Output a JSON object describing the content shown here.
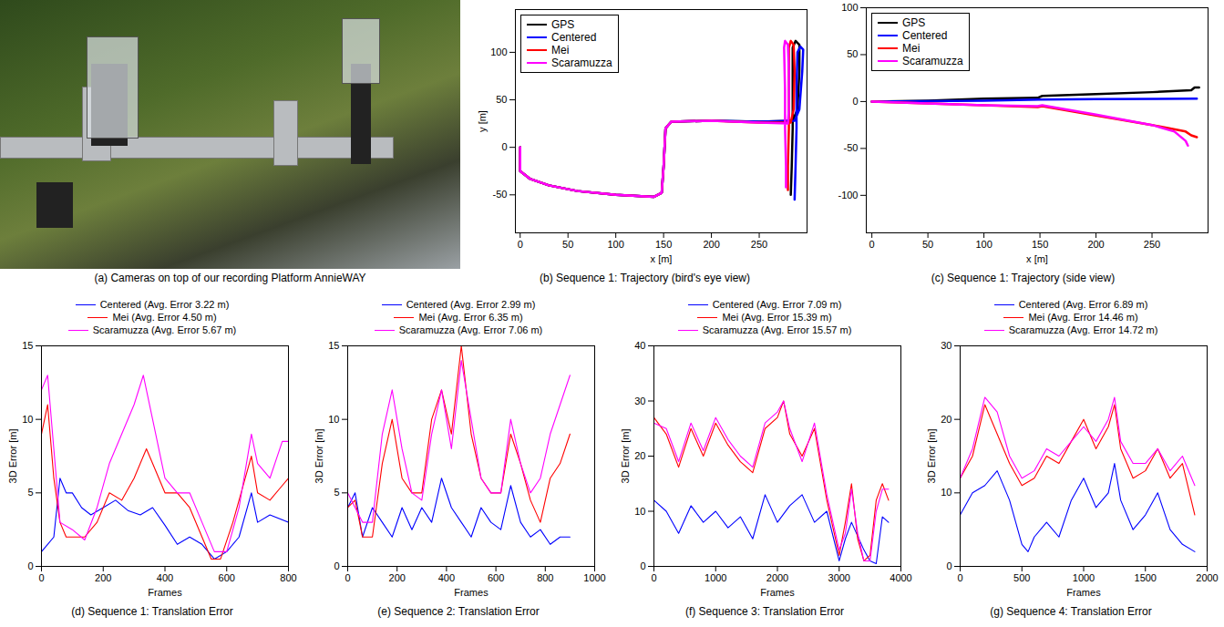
{
  "chart_data": [
    {
      "type": "image",
      "caption": "(a) Cameras on top of our recording Platform AnnieWAY"
    },
    {
      "type": "line",
      "caption": "(b) Sequence 1: Trajectory (bird's eye view)",
      "xlabel": "x [m]",
      "ylabel": "y [m]",
      "xlim": [
        -5,
        300
      ],
      "xticks": [
        0,
        50,
        100,
        150,
        200,
        250
      ],
      "ylim": [
        -90,
        145
      ],
      "yticks": [
        -50,
        0,
        50,
        100
      ],
      "grid": false,
      "legend": "upper left",
      "series": [
        {
          "name": "GPS",
          "color": "#000000",
          "x": [
            0,
            0,
            10,
            30,
            60,
            100,
            140,
            148,
            150,
            152,
            158,
            200,
            250,
            285,
            290,
            292,
            292,
            288,
            285,
            285,
            285,
            284,
            283
          ],
          "values": [
            0,
            -25,
            -33,
            -40,
            -46,
            -50,
            -52,
            -48,
            -20,
            20,
            27,
            28,
            27,
            28,
            40,
            80,
            108,
            112,
            105,
            60,
            20,
            -20,
            -50
          ]
        },
        {
          "name": "Centered",
          "color": "#0000ff",
          "x": [
            0,
            0,
            10,
            30,
            60,
            100,
            140,
            148,
            150,
            152,
            158,
            200,
            250,
            287,
            292,
            295,
            296,
            293,
            290,
            289,
            289,
            288,
            287
          ],
          "values": [
            0,
            -25,
            -33,
            -40,
            -46,
            -50,
            -52,
            -48,
            -20,
            20,
            27,
            28,
            27,
            28,
            40,
            80,
            103,
            106,
            100,
            60,
            20,
            -20,
            -55
          ]
        },
        {
          "name": "Mei",
          "color": "#ff0000",
          "x": [
            0,
            0,
            10,
            30,
            60,
            100,
            140,
            148,
            150,
            152,
            158,
            200,
            250,
            283,
            286,
            287,
            286,
            283,
            281,
            281,
            281,
            280,
            280
          ],
          "values": [
            0,
            -25,
            -33,
            -40,
            -46,
            -50,
            -52,
            -48,
            -20,
            20,
            27,
            28,
            26,
            26,
            40,
            80,
            108,
            112,
            105,
            60,
            20,
            -20,
            -45
          ]
        },
        {
          "name": "Scaramuzza",
          "color": "#ff00ff",
          "x": [
            0,
            0,
            10,
            30,
            60,
            100,
            140,
            148,
            150,
            152,
            158,
            200,
            250,
            280,
            281,
            281,
            280,
            277,
            276,
            277,
            277,
            278,
            278
          ],
          "values": [
            0,
            -25,
            -33,
            -40,
            -46,
            -50,
            -52,
            -48,
            -20,
            20,
            27,
            28,
            26,
            25,
            40,
            80,
            108,
            112,
            105,
            60,
            20,
            -20,
            -42
          ]
        }
      ]
    },
    {
      "type": "line",
      "caption": "(c) Sequence 1: Trajectory (side view)",
      "xlabel": "x [m]",
      "xlim": [
        -5,
        300
      ],
      "xticks": [
        0,
        50,
        100,
        150,
        200,
        250
      ],
      "ylim": [
        -140,
        100
      ],
      "yticks": [
        -100,
        -50,
        0,
        50,
        100
      ],
      "grid": false,
      "legend": "upper left",
      "series": [
        {
          "name": "GPS",
          "color": "#000000",
          "x": [
            0,
            50,
            100,
            148,
            152,
            200,
            250,
            285,
            288,
            292
          ],
          "values": [
            0,
            1,
            3,
            4,
            6,
            8,
            10,
            12,
            15,
            15
          ]
        },
        {
          "name": "Centered",
          "color": "#0000ff",
          "x": [
            0,
            100,
            150,
            200,
            290
          ],
          "values": [
            0,
            1,
            2,
            2.5,
            3
          ]
        },
        {
          "name": "Mei",
          "color": "#ff0000",
          "x": [
            0,
            50,
            100,
            148,
            152,
            200,
            250,
            280,
            285,
            290
          ],
          "values": [
            0,
            -2,
            -4,
            -6,
            -5,
            -15,
            -25,
            -32,
            -36,
            -38
          ]
        },
        {
          "name": "Scaramuzza",
          "color": "#ff00ff",
          "x": [
            0,
            50,
            100,
            148,
            152,
            200,
            250,
            270,
            280,
            282
          ],
          "values": [
            0,
            -2,
            -4,
            -5,
            -4,
            -14,
            -25,
            -32,
            -42,
            -47
          ]
        }
      ]
    },
    {
      "type": "line",
      "caption": "(d) Sequence 1: Translation Error",
      "xlabel": "Frames",
      "ylabel": "3D Error [m]",
      "xlim": [
        0,
        800
      ],
      "xticks": [
        0,
        200,
        400,
        600,
        800
      ],
      "ylim": [
        0,
        15
      ],
      "yticks": [
        0,
        5,
        10,
        15
      ],
      "grid": false,
      "legend": "top",
      "series": [
        {
          "name": "Centered (Avg. Error 3.22 m)",
          "color": "#0000ff",
          "x": [
            0,
            20,
            40,
            60,
            80,
            100,
            130,
            160,
            200,
            240,
            280,
            320,
            360,
            400,
            440,
            480,
            520,
            560,
            600,
            640,
            680,
            700,
            740,
            800
          ],
          "values": [
            1,
            1.5,
            2,
            6,
            5,
            5,
            4,
            3.5,
            4,
            4.5,
            3.8,
            3.5,
            4,
            2.8,
            1.5,
            2,
            1.5,
            0.5,
            1,
            2,
            5,
            3,
            3.5,
            3
          ]
        },
        {
          "name": "Mei (Avg. Error 4.50 m)",
          "color": "#ff0000",
          "x": [
            0,
            20,
            40,
            60,
            80,
            100,
            140,
            180,
            220,
            260,
            300,
            340,
            360,
            400,
            440,
            480,
            520,
            550,
            580,
            620,
            660,
            680,
            700,
            740,
            780,
            800
          ],
          "values": [
            9,
            11,
            6,
            3,
            2,
            2,
            2,
            3,
            5,
            4.5,
            6,
            8,
            7,
            5,
            5,
            4,
            2,
            0.5,
            0.5,
            3,
            6,
            7.5,
            5,
            4.5,
            5.5,
            6
          ]
        },
        {
          "name": "Scaramuzza (Avg. Error 5.67 m)",
          "color": "#ff00ff",
          "x": [
            0,
            20,
            40,
            60,
            100,
            140,
            180,
            220,
            260,
            300,
            330,
            360,
            400,
            440,
            480,
            520,
            560,
            600,
            640,
            680,
            700,
            740,
            780,
            800
          ],
          "values": [
            12,
            13,
            8,
            3,
            2.5,
            1.8,
            4,
            7,
            9,
            11,
            13,
            10,
            6,
            5,
            5,
            3,
            1,
            1,
            4,
            9,
            7,
            6,
            8.5,
            8.5
          ]
        }
      ]
    },
    {
      "type": "line",
      "caption": "(e) Sequence 2: Translation Error",
      "xlabel": "Frames",
      "ylabel": "3D Error [m]",
      "xlim": [
        0,
        1000
      ],
      "xticks": [
        0,
        200,
        400,
        600,
        800,
        1000
      ],
      "ylim": [
        0,
        15
      ],
      "yticks": [
        0,
        5,
        10,
        15
      ],
      "grid": false,
      "legend": "top",
      "series": [
        {
          "name": "Centered (Avg. Error 2.99 m)",
          "color": "#0000ff",
          "x": [
            0,
            30,
            60,
            100,
            140,
            180,
            220,
            260,
            300,
            340,
            380,
            420,
            460,
            500,
            540,
            580,
            620,
            660,
            700,
            740,
            780,
            820,
            860,
            900
          ],
          "values": [
            4,
            5,
            2,
            4,
            3,
            2,
            4,
            2.5,
            4,
            3,
            6,
            4,
            3,
            2,
            4,
            3,
            2.5,
            5.5,
            3,
            2,
            2.5,
            1.5,
            2,
            2
          ]
        },
        {
          "name": "Mei (Avg. Error 6.35 m)",
          "color": "#ff0000",
          "x": [
            0,
            30,
            60,
            100,
            140,
            180,
            220,
            260,
            300,
            340,
            380,
            420,
            460,
            500,
            540,
            580,
            620,
            660,
            700,
            740,
            780,
            820,
            860,
            900
          ],
          "values": [
            4,
            4.5,
            2,
            2,
            7,
            10,
            6,
            5,
            5,
            10,
            12,
            9,
            15,
            9,
            6,
            5,
            5,
            9,
            7,
            4.5,
            3,
            6,
            7,
            9
          ]
        },
        {
          "name": "Scaramuzza (Avg. Error 7.06 m)",
          "color": "#ff00ff",
          "x": [
            0,
            30,
            60,
            100,
            140,
            180,
            220,
            260,
            300,
            340,
            380,
            420,
            460,
            500,
            540,
            580,
            620,
            660,
            700,
            740,
            780,
            820,
            860,
            900
          ],
          "values": [
            5,
            4,
            3,
            3,
            9,
            12,
            8,
            5,
            4.5,
            9,
            12,
            8,
            14,
            10,
            6,
            5,
            5,
            10,
            7,
            5,
            6,
            9,
            11,
            13
          ]
        }
      ]
    },
    {
      "type": "line",
      "caption": "(f) Sequence 3: Translation Error",
      "xlabel": "Frames",
      "ylabel": "3D Error [m]",
      "xlim": [
        0,
        4000
      ],
      "xticks": [
        0,
        1000,
        2000,
        3000,
        4000
      ],
      "ylim": [
        0,
        40
      ],
      "yticks": [
        0,
        10,
        20,
        30,
        40
      ],
      "grid": false,
      "legend": "top",
      "series": [
        {
          "name": "Centered (Avg. Error 7.09 m)",
          "color": "#0000ff",
          "x": [
            0,
            200,
            400,
            600,
            800,
            1000,
            1200,
            1400,
            1600,
            1800,
            2000,
            2200,
            2400,
            2600,
            2800,
            3000,
            3100,
            3200,
            3400,
            3500,
            3600,
            3700,
            3800
          ],
          "values": [
            12,
            10,
            6,
            11,
            8,
            10,
            7,
            9,
            5,
            13,
            8,
            11,
            13,
            8,
            10,
            1,
            5,
            8,
            3,
            1,
            0.5,
            9,
            8
          ]
        },
        {
          "name": "Mei (Avg. Error 15.39 m)",
          "color": "#ff0000",
          "x": [
            0,
            200,
            400,
            600,
            800,
            1000,
            1200,
            1400,
            1600,
            1800,
            2000,
            2100,
            2200,
            2400,
            2600,
            2800,
            3000,
            3100,
            3200,
            3300,
            3400,
            3500,
            3600,
            3700,
            3800
          ],
          "values": [
            27,
            24,
            18,
            25,
            20,
            26,
            22,
            19,
            17,
            25,
            27,
            30,
            24,
            20,
            25,
            12,
            2,
            8,
            15,
            5,
            1,
            2,
            12,
            15,
            12
          ]
        },
        {
          "name": "Scaramuzza (Avg. Error 15.57 m)",
          "color": "#ff00ff",
          "x": [
            0,
            200,
            400,
            600,
            800,
            1000,
            1200,
            1400,
            1600,
            1800,
            2000,
            2100,
            2200,
            2400,
            2600,
            2800,
            3000,
            3100,
            3200,
            3300,
            3400,
            3500,
            3600,
            3700,
            3800
          ],
          "values": [
            26,
            25,
            19,
            26,
            21,
            27,
            23,
            20,
            18,
            26,
            28,
            30,
            25,
            19,
            26,
            13,
            3,
            6,
            14,
            6,
            1,
            1,
            10,
            14,
            14
          ]
        }
      ]
    },
    {
      "type": "line",
      "caption": "(g) Sequence 4: Translation Error",
      "xlabel": "Frames",
      "ylabel": "3D Error [m]",
      "xlim": [
        0,
        2000
      ],
      "xticks": [
        0,
        500,
        1000,
        1500,
        2000
      ],
      "ylim": [
        0,
        30
      ],
      "yticks": [
        0,
        10,
        20,
        30
      ],
      "grid": false,
      "legend": "top",
      "series": [
        {
          "name": "Centered (Avg. Error 6.89 m)",
          "color": "#0000ff",
          "x": [
            0,
            100,
            200,
            300,
            400,
            500,
            550,
            600,
            700,
            800,
            900,
            1000,
            1100,
            1200,
            1250,
            1300,
            1400,
            1500,
            1600,
            1700,
            1800,
            1900
          ],
          "values": [
            7,
            10,
            11,
            13,
            9,
            3,
            2,
            4,
            6,
            4,
            9,
            12,
            8,
            10,
            14,
            9,
            5,
            7,
            10,
            5,
            3,
            2
          ]
        },
        {
          "name": "Mei (Avg. Error 14.46 m)",
          "color": "#ff0000",
          "x": [
            0,
            100,
            200,
            300,
            400,
            500,
            600,
            700,
            800,
            900,
            1000,
            1100,
            1200,
            1250,
            1300,
            1400,
            1500,
            1600,
            1700,
            1800,
            1900
          ],
          "values": [
            12,
            15,
            22,
            18,
            14,
            11,
            12,
            15,
            14,
            17,
            20,
            16,
            19,
            22,
            16,
            12,
            13,
            16,
            12,
            14,
            7
          ]
        },
        {
          "name": "Scaramuzza (Avg. Error 14.72 m)",
          "color": "#ff00ff",
          "x": [
            0,
            100,
            200,
            300,
            400,
            500,
            600,
            700,
            800,
            900,
            1000,
            1100,
            1200,
            1250,
            1300,
            1400,
            1500,
            1600,
            1700,
            1800,
            1900
          ],
          "values": [
            12,
            16,
            23,
            21,
            15,
            12,
            13,
            16,
            15,
            17,
            19,
            17,
            20,
            23,
            17,
            14,
            14,
            16,
            13,
            15,
            11
          ]
        }
      ]
    }
  ]
}
